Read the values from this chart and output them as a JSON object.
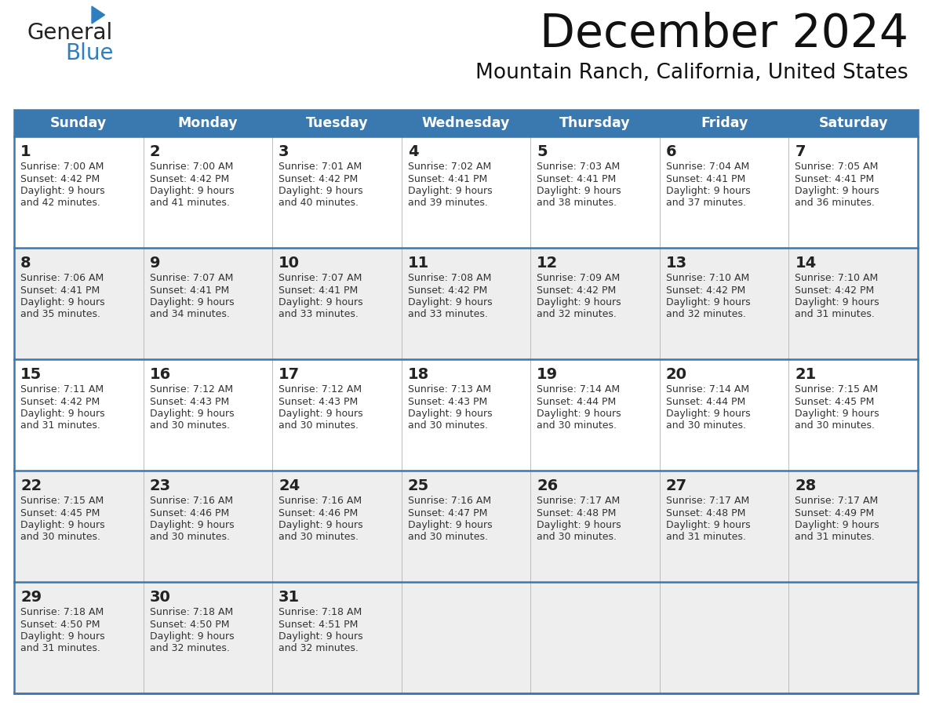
{
  "title": "December 2024",
  "subtitle": "Mountain Ranch, California, United States",
  "header_bg_color": "#3a78b0",
  "header_text_color": "#ffffff",
  "header_days": [
    "Sunday",
    "Monday",
    "Tuesday",
    "Wednesday",
    "Thursday",
    "Friday",
    "Saturday"
  ],
  "row_bg_colors": [
    "#ffffff",
    "#eeeeee",
    "#ffffff",
    "#eeeeee",
    "#eeeeee"
  ],
  "border_color": "#3a78b0",
  "separator_color": "#3a78b0",
  "day_number_color": "#222222",
  "text_color": "#333333",
  "calendar": [
    [
      {
        "day": 1,
        "sunrise": "7:00 AM",
        "sunset": "4:42 PM",
        "daylight": "9 hours and 42 minutes"
      },
      {
        "day": 2,
        "sunrise": "7:00 AM",
        "sunset": "4:42 PM",
        "daylight": "9 hours and 41 minutes"
      },
      {
        "day": 3,
        "sunrise": "7:01 AM",
        "sunset": "4:42 PM",
        "daylight": "9 hours and 40 minutes"
      },
      {
        "day": 4,
        "sunrise": "7:02 AM",
        "sunset": "4:41 PM",
        "daylight": "9 hours and 39 minutes"
      },
      {
        "day": 5,
        "sunrise": "7:03 AM",
        "sunset": "4:41 PM",
        "daylight": "9 hours and 38 minutes"
      },
      {
        "day": 6,
        "sunrise": "7:04 AM",
        "sunset": "4:41 PM",
        "daylight": "9 hours and 37 minutes"
      },
      {
        "day": 7,
        "sunrise": "7:05 AM",
        "sunset": "4:41 PM",
        "daylight": "9 hours and 36 minutes"
      }
    ],
    [
      {
        "day": 8,
        "sunrise": "7:06 AM",
        "sunset": "4:41 PM",
        "daylight": "9 hours and 35 minutes"
      },
      {
        "day": 9,
        "sunrise": "7:07 AM",
        "sunset": "4:41 PM",
        "daylight": "9 hours and 34 minutes"
      },
      {
        "day": 10,
        "sunrise": "7:07 AM",
        "sunset": "4:41 PM",
        "daylight": "9 hours and 33 minutes"
      },
      {
        "day": 11,
        "sunrise": "7:08 AM",
        "sunset": "4:42 PM",
        "daylight": "9 hours and 33 minutes"
      },
      {
        "day": 12,
        "sunrise": "7:09 AM",
        "sunset": "4:42 PM",
        "daylight": "9 hours and 32 minutes"
      },
      {
        "day": 13,
        "sunrise": "7:10 AM",
        "sunset": "4:42 PM",
        "daylight": "9 hours and 32 minutes"
      },
      {
        "day": 14,
        "sunrise": "7:10 AM",
        "sunset": "4:42 PM",
        "daylight": "9 hours and 31 minutes"
      }
    ],
    [
      {
        "day": 15,
        "sunrise": "7:11 AM",
        "sunset": "4:42 PM",
        "daylight": "9 hours and 31 minutes"
      },
      {
        "day": 16,
        "sunrise": "7:12 AM",
        "sunset": "4:43 PM",
        "daylight": "9 hours and 30 minutes"
      },
      {
        "day": 17,
        "sunrise": "7:12 AM",
        "sunset": "4:43 PM",
        "daylight": "9 hours and 30 minutes"
      },
      {
        "day": 18,
        "sunrise": "7:13 AM",
        "sunset": "4:43 PM",
        "daylight": "9 hours and 30 minutes"
      },
      {
        "day": 19,
        "sunrise": "7:14 AM",
        "sunset": "4:44 PM",
        "daylight": "9 hours and 30 minutes"
      },
      {
        "day": 20,
        "sunrise": "7:14 AM",
        "sunset": "4:44 PM",
        "daylight": "9 hours and 30 minutes"
      },
      {
        "day": 21,
        "sunrise": "7:15 AM",
        "sunset": "4:45 PM",
        "daylight": "9 hours and 30 minutes"
      }
    ],
    [
      {
        "day": 22,
        "sunrise": "7:15 AM",
        "sunset": "4:45 PM",
        "daylight": "9 hours and 30 minutes"
      },
      {
        "day": 23,
        "sunrise": "7:16 AM",
        "sunset": "4:46 PM",
        "daylight": "9 hours and 30 minutes"
      },
      {
        "day": 24,
        "sunrise": "7:16 AM",
        "sunset": "4:46 PM",
        "daylight": "9 hours and 30 minutes"
      },
      {
        "day": 25,
        "sunrise": "7:16 AM",
        "sunset": "4:47 PM",
        "daylight": "9 hours and 30 minutes"
      },
      {
        "day": 26,
        "sunrise": "7:17 AM",
        "sunset": "4:48 PM",
        "daylight": "9 hours and 30 minutes"
      },
      {
        "day": 27,
        "sunrise": "7:17 AM",
        "sunset": "4:48 PM",
        "daylight": "9 hours and 31 minutes"
      },
      {
        "day": 28,
        "sunrise": "7:17 AM",
        "sunset": "4:49 PM",
        "daylight": "9 hours and 31 minutes"
      }
    ],
    [
      {
        "day": 29,
        "sunrise": "7:18 AM",
        "sunset": "4:50 PM",
        "daylight": "9 hours and 31 minutes"
      },
      {
        "day": 30,
        "sunrise": "7:18 AM",
        "sunset": "4:50 PM",
        "daylight": "9 hours and 32 minutes"
      },
      {
        "day": 31,
        "sunrise": "7:18 AM",
        "sunset": "4:51 PM",
        "daylight": "9 hours and 32 minutes"
      },
      null,
      null,
      null,
      null
    ]
  ]
}
